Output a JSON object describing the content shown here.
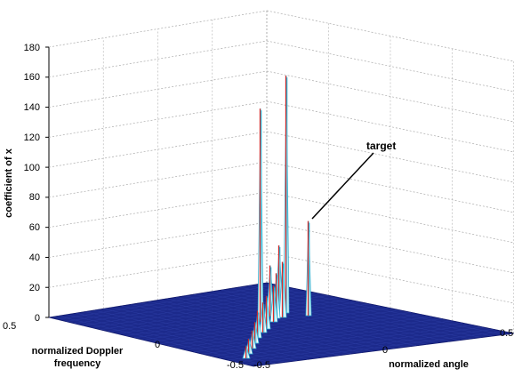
{
  "chart_data": {
    "type": "surface3d",
    "zlabel": "coefficient of x",
    "xlabel_line1": "normalized Doppler",
    "xlabel_line2": "frequency",
    "ylabel": "normalized angle",
    "zlim": [
      0,
      180
    ],
    "z_ticks": [
      "0",
      "20",
      "40",
      "60",
      "80",
      "100",
      "120",
      "140",
      "160",
      "180"
    ],
    "doppler_ticks": [
      "0.5",
      "0",
      "-0.5"
    ],
    "angle_ticks": [
      "-0.5",
      "0",
      "0.5"
    ],
    "grid": true,
    "surface_color": "#1c2a8c",
    "peak_colors": [
      "#d42020",
      "#2fb0d0",
      "#ffffff"
    ],
    "annotation": "target",
    "peaks": [
      {
        "z": 142
      },
      {
        "z": 158
      },
      {
        "z": 63
      },
      {
        "z": 45
      },
      {
        "z": 37
      },
      {
        "z": 34
      },
      {
        "z": 30
      },
      {
        "z": 24
      },
      {
        "z": 22
      },
      {
        "z": 20
      },
      {
        "z": 18
      },
      {
        "z": 14
      },
      {
        "z": 12
      },
      {
        "z": 10
      },
      {
        "z": 8
      }
    ]
  }
}
